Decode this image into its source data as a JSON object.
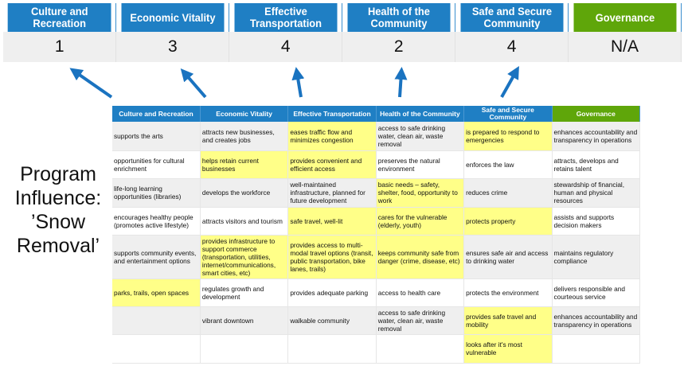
{
  "scores": {
    "headers": [
      "Culture and Recreation",
      "Economic Vitality",
      "Effective Transportation",
      "Health of the Community",
      "Safe and Secure Community",
      "Governance"
    ],
    "values": [
      "1",
      "3",
      "4",
      "2",
      "4",
      "N/A"
    ]
  },
  "program_label": [
    "Program",
    "Influence:",
    "’Snow",
    "Removal’"
  ],
  "colors": {
    "blue": "#1f7fc4",
    "green": "#5fa60a",
    "highlight": "#ffff88",
    "row_gray": "#efefef",
    "arrow": "#1a73c0"
  },
  "grid": {
    "headers": [
      "Culture and Recreation",
      "Economic Vitality",
      "Effective Transportation",
      "Health of the Community",
      "Safe and Secure Community",
      "Governance"
    ],
    "rows": [
      [
        {
          "t": "supports the arts"
        },
        {
          "t": "attracts new businesses, and creates jobs"
        },
        {
          "t": "eases traffic flow and minimizes congestion",
          "h": true
        },
        {
          "t": "access to safe drinking water, clean air, waste removal"
        },
        {
          "t": "is prepared to respond to emergencies",
          "h": true
        },
        {
          "t": "enhances accountability and transparency in operations"
        }
      ],
      [
        {
          "t": "opportunities for cultural enrichment"
        },
        {
          "t": "helps retain current businesses",
          "h": true
        },
        {
          "t": "provides convenient and efficient access",
          "h": true
        },
        {
          "t": "preserves the natural environment"
        },
        {
          "t": "enforces the law"
        },
        {
          "t": "attracts, develops and retains talent"
        }
      ],
      [
        {
          "t": "life-long learning opportunities (libraries)"
        },
        {
          "t": "develops the workforce"
        },
        {
          "t": "well-maintained infrastructure, planned for future development"
        },
        {
          "t": "basic needs – safety, shelter, food, opportunity to work",
          "h": true
        },
        {
          "t": "reduces crime"
        },
        {
          "t": "stewardship of financial, human and physical resources"
        }
      ],
      [
        {
          "t": "encourages healthy people (promotes active lifestyle)"
        },
        {
          "t": "attracts visitors and tourism"
        },
        {
          "t": "safe travel, well-lit",
          "h": true
        },
        {
          "t": "cares for the vulnerable (elderly, youth)",
          "h": true
        },
        {
          "t": "protects property",
          "h": true
        },
        {
          "t": "assists and supports decision makers"
        }
      ],
      [
        {
          "t": "supports community events, and entertainment options"
        },
        {
          "t": "provides infrastructure to support commerce (transportation, utilities, internet/communications, smart cities, etc)",
          "h": true
        },
        {
          "t": "provides access to multi-modal travel options (transit, public transportation, bike lanes, trails)",
          "h": true
        },
        {
          "t": "keeps community safe from danger (crime, disease, etc)",
          "h": true
        },
        {
          "t": "ensures safe air and access to drinking water"
        },
        {
          "t": "maintains regulatory compliance"
        }
      ],
      [
        {
          "t": "parks, trails, open spaces",
          "h": true
        },
        {
          "t": "regulates growth and development"
        },
        {
          "t": "provides adequate parking"
        },
        {
          "t": "access to health care"
        },
        {
          "t": "protects the environment"
        },
        {
          "t": "delivers responsible and courteous service"
        }
      ],
      [
        {
          "t": ""
        },
        {
          "t": "vibrant downtown"
        },
        {
          "t": "walkable community"
        },
        {
          "t": "access to safe drinking water, clean air, waste removal"
        },
        {
          "t": "provides safe travel and mobility",
          "h": true
        },
        {
          "t": "enhances accountability and transparency in operations"
        }
      ],
      [
        {
          "t": ""
        },
        {
          "t": ""
        },
        {
          "t": ""
        },
        {
          "t": ""
        },
        {
          "t": "looks after it's most vulnerable",
          "h": true
        },
        {
          "t": ""
        }
      ]
    ]
  }
}
